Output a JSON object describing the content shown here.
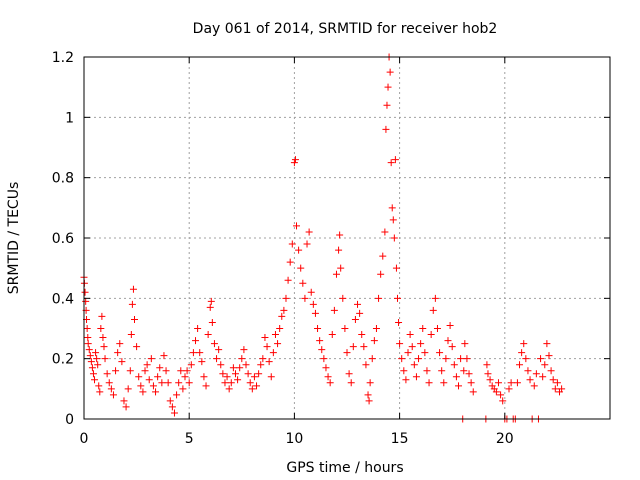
{
  "chart_data": {
    "type": "scatter",
    "title": "Day 061 of 2014, SRMTID for receiver hob2",
    "xlabel": "GPS time / hours",
    "ylabel": "SRMTID / TECUs",
    "xlim": [
      0,
      25
    ],
    "ylim": [
      0,
      1.2
    ],
    "xticks": [
      0,
      5,
      10,
      15,
      20
    ],
    "xtick_labels": [
      "0",
      "5",
      "10",
      "15",
      "20"
    ],
    "yticks": [
      0,
      0.2,
      0.4,
      0.6,
      0.8,
      1.0,
      1.2
    ],
    "ytick_labels": [
      "0",
      "0.2",
      "0.4",
      "0.6",
      "0.8",
      "1",
      "1.2"
    ],
    "grid": true,
    "legend": "none",
    "marker": "plus",
    "color": "#ff0000",
    "series": [
      {
        "name": "SRMTID",
        "points": [
          [
            0.0,
            0.47
          ],
          [
            0.02,
            0.45
          ],
          [
            0.05,
            0.42
          ],
          [
            0.08,
            0.39
          ],
          [
            0.1,
            0.36
          ],
          [
            0.12,
            0.33
          ],
          [
            0.15,
            0.3
          ],
          [
            0.18,
            0.27
          ],
          [
            0.2,
            0.25
          ],
          [
            0.25,
            0.23
          ],
          [
            0.3,
            0.21
          ],
          [
            0.35,
            0.19
          ],
          [
            0.4,
            0.17
          ],
          [
            0.45,
            0.15
          ],
          [
            0.5,
            0.13
          ],
          [
            0.55,
            0.22
          ],
          [
            0.6,
            0.2
          ],
          [
            0.65,
            0.18
          ],
          [
            0.7,
            0.11
          ],
          [
            0.75,
            0.09
          ],
          [
            0.8,
            0.3
          ],
          [
            0.85,
            0.34
          ],
          [
            0.9,
            0.27
          ],
          [
            0.95,
            0.24
          ],
          [
            1.0,
            0.2
          ],
          [
            1.1,
            0.15
          ],
          [
            1.2,
            0.12
          ],
          [
            1.3,
            0.1
          ],
          [
            1.4,
            0.08
          ],
          [
            1.5,
            0.16
          ],
          [
            1.6,
            0.22
          ],
          [
            1.7,
            0.25
          ],
          [
            1.8,
            0.19
          ],
          [
            1.9,
            0.06
          ],
          [
            2.0,
            0.04
          ],
          [
            2.1,
            0.1
          ],
          [
            2.2,
            0.16
          ],
          [
            2.25,
            0.28
          ],
          [
            2.3,
            0.38
          ],
          [
            2.35,
            0.43
          ],
          [
            2.4,
            0.33
          ],
          [
            2.5,
            0.24
          ],
          [
            2.6,
            0.14
          ],
          [
            2.7,
            0.11
          ],
          [
            2.8,
            0.09
          ],
          [
            2.9,
            0.16
          ],
          [
            3.0,
            0.18
          ],
          [
            3.1,
            0.13
          ],
          [
            3.2,
            0.2
          ],
          [
            3.3,
            0.11
          ],
          [
            3.4,
            0.09
          ],
          [
            3.5,
            0.14
          ],
          [
            3.6,
            0.17
          ],
          [
            3.7,
            0.12
          ],
          [
            3.8,
            0.21
          ],
          [
            3.9,
            0.16
          ],
          [
            4.0,
            0.12
          ],
          [
            4.1,
            0.06
          ],
          [
            4.2,
            0.04
          ],
          [
            4.3,
            0.02
          ],
          [
            4.4,
            0.08
          ],
          [
            4.5,
            0.12
          ],
          [
            4.6,
            0.16
          ],
          [
            4.7,
            0.1
          ],
          [
            4.8,
            0.14
          ],
          [
            4.9,
            0.16
          ],
          [
            5.0,
            0.12
          ],
          [
            5.1,
            0.18
          ],
          [
            5.2,
            0.22
          ],
          [
            5.3,
            0.26
          ],
          [
            5.4,
            0.3
          ],
          [
            5.5,
            0.22
          ],
          [
            5.6,
            0.19
          ],
          [
            5.7,
            0.14
          ],
          [
            5.8,
            0.11
          ],
          [
            5.9,
            0.28
          ],
          [
            6.0,
            0.37
          ],
          [
            6.05,
            0.39
          ],
          [
            6.1,
            0.32
          ],
          [
            6.2,
            0.25
          ],
          [
            6.3,
            0.2
          ],
          [
            6.4,
            0.23
          ],
          [
            6.5,
            0.18
          ],
          [
            6.6,
            0.15
          ],
          [
            6.7,
            0.12
          ],
          [
            6.8,
            0.14
          ],
          [
            6.9,
            0.1
          ],
          [
            7.0,
            0.12
          ],
          [
            7.1,
            0.17
          ],
          [
            7.2,
            0.15
          ],
          [
            7.3,
            0.13
          ],
          [
            7.4,
            0.17
          ],
          [
            7.5,
            0.2
          ],
          [
            7.6,
            0.23
          ],
          [
            7.7,
            0.18
          ],
          [
            7.8,
            0.15
          ],
          [
            7.9,
            0.12
          ],
          [
            8.0,
            0.1
          ],
          [
            8.1,
            0.14
          ],
          [
            8.2,
            0.11
          ],
          [
            8.3,
            0.15
          ],
          [
            8.4,
            0.18
          ],
          [
            8.5,
            0.2
          ],
          [
            8.6,
            0.27
          ],
          [
            8.7,
            0.24
          ],
          [
            8.8,
            0.19
          ],
          [
            8.9,
            0.14
          ],
          [
            9.0,
            0.22
          ],
          [
            9.1,
            0.28
          ],
          [
            9.2,
            0.25
          ],
          [
            9.3,
            0.3
          ],
          [
            9.4,
            0.34
          ],
          [
            9.5,
            0.36
          ],
          [
            9.6,
            0.4
          ],
          [
            9.7,
            0.46
          ],
          [
            9.8,
            0.52
          ],
          [
            9.9,
            0.58
          ],
          [
            10.0,
            0.85
          ],
          [
            10.05,
            0.86
          ],
          [
            10.1,
            0.64
          ],
          [
            10.2,
            0.56
          ],
          [
            10.3,
            0.5
          ],
          [
            10.4,
            0.45
          ],
          [
            10.5,
            0.4
          ],
          [
            10.6,
            0.58
          ],
          [
            10.7,
            0.62
          ],
          [
            10.8,
            0.42
          ],
          [
            10.9,
            0.38
          ],
          [
            11.0,
            0.35
          ],
          [
            11.1,
            0.3
          ],
          [
            11.2,
            0.26
          ],
          [
            11.3,
            0.23
          ],
          [
            11.4,
            0.2
          ],
          [
            11.5,
            0.17
          ],
          [
            11.6,
            0.14
          ],
          [
            11.7,
            0.12
          ],
          [
            11.8,
            0.28
          ],
          [
            11.9,
            0.36
          ],
          [
            12.0,
            0.48
          ],
          [
            12.1,
            0.56
          ],
          [
            12.15,
            0.61
          ],
          [
            12.2,
            0.5
          ],
          [
            12.3,
            0.4
          ],
          [
            12.4,
            0.3
          ],
          [
            12.5,
            0.22
          ],
          [
            12.6,
            0.15
          ],
          [
            12.7,
            0.12
          ],
          [
            12.8,
            0.24
          ],
          [
            12.9,
            0.33
          ],
          [
            13.0,
            0.38
          ],
          [
            13.1,
            0.35
          ],
          [
            13.2,
            0.28
          ],
          [
            13.3,
            0.24
          ],
          [
            13.4,
            0.18
          ],
          [
            13.5,
            0.08
          ],
          [
            13.55,
            0.06
          ],
          [
            13.6,
            0.12
          ],
          [
            13.7,
            0.2
          ],
          [
            13.8,
            0.26
          ],
          [
            13.9,
            0.3
          ],
          [
            14.0,
            0.4
          ],
          [
            14.1,
            0.48
          ],
          [
            14.2,
            0.54
          ],
          [
            14.3,
            0.62
          ],
          [
            14.35,
            0.96
          ],
          [
            14.4,
            1.04
          ],
          [
            14.45,
            1.1
          ],
          [
            14.5,
            1.2
          ],
          [
            14.55,
            1.15
          ],
          [
            14.6,
            0.85
          ],
          [
            14.65,
            0.7
          ],
          [
            14.7,
            0.66
          ],
          [
            14.75,
            0.6
          ],
          [
            14.8,
            0.86
          ],
          [
            14.85,
            0.5
          ],
          [
            14.9,
            0.4
          ],
          [
            14.95,
            0.32
          ],
          [
            15.0,
            0.25
          ],
          [
            15.1,
            0.2
          ],
          [
            15.2,
            0.16
          ],
          [
            15.3,
            0.13
          ],
          [
            15.4,
            0.22
          ],
          [
            15.5,
            0.28
          ],
          [
            15.6,
            0.24
          ],
          [
            15.7,
            0.18
          ],
          [
            15.8,
            0.14
          ],
          [
            15.9,
            0.2
          ],
          [
            16.0,
            0.25
          ],
          [
            16.1,
            0.3
          ],
          [
            16.2,
            0.22
          ],
          [
            16.3,
            0.16
          ],
          [
            16.4,
            0.12
          ],
          [
            16.5,
            0.28
          ],
          [
            16.6,
            0.36
          ],
          [
            16.7,
            0.4
          ],
          [
            16.8,
            0.3
          ],
          [
            16.9,
            0.22
          ],
          [
            17.0,
            0.16
          ],
          [
            17.1,
            0.12
          ],
          [
            17.2,
            0.2
          ],
          [
            17.3,
            0.26
          ],
          [
            17.4,
            0.31
          ],
          [
            17.5,
            0.24
          ],
          [
            17.6,
            0.18
          ],
          [
            17.7,
            0.14
          ],
          [
            17.8,
            0.11
          ],
          [
            17.9,
            0.2
          ],
          [
            18.0,
            0.0
          ],
          [
            18.05,
            0.16
          ],
          [
            18.1,
            0.25
          ],
          [
            18.2,
            0.2
          ],
          [
            18.3,
            0.15
          ],
          [
            18.4,
            0.12
          ],
          [
            18.5,
            0.09
          ],
          [
            19.1,
            0.0
          ],
          [
            19.15,
            0.18
          ],
          [
            19.2,
            0.15
          ],
          [
            19.3,
            0.13
          ],
          [
            19.4,
            0.11
          ],
          [
            19.5,
            0.1
          ],
          [
            19.6,
            0.09
          ],
          [
            19.7,
            0.12
          ],
          [
            19.8,
            0.08
          ],
          [
            19.9,
            0.06
          ],
          [
            20.0,
            0.0
          ],
          [
            20.1,
            0.0
          ],
          [
            20.2,
            0.1
          ],
          [
            20.3,
            0.12
          ],
          [
            20.4,
            0.0
          ],
          [
            20.5,
            0.0
          ],
          [
            20.6,
            0.12
          ],
          [
            20.7,
            0.18
          ],
          [
            20.8,
            0.22
          ],
          [
            20.9,
            0.25
          ],
          [
            21.0,
            0.2
          ],
          [
            21.1,
            0.16
          ],
          [
            21.2,
            0.13
          ],
          [
            21.3,
            0.0
          ],
          [
            21.4,
            0.11
          ],
          [
            21.5,
            0.15
          ],
          [
            21.6,
            0.0
          ],
          [
            21.7,
            0.2
          ],
          [
            21.8,
            0.14
          ],
          [
            21.9,
            0.18
          ],
          [
            22.0,
            0.25
          ],
          [
            22.1,
            0.21
          ],
          [
            22.2,
            0.16
          ],
          [
            22.3,
            0.13
          ],
          [
            22.4,
            0.1
          ],
          [
            22.5,
            0.12
          ],
          [
            22.6,
            0.09
          ],
          [
            22.7,
            0.1
          ]
        ]
      }
    ]
  }
}
